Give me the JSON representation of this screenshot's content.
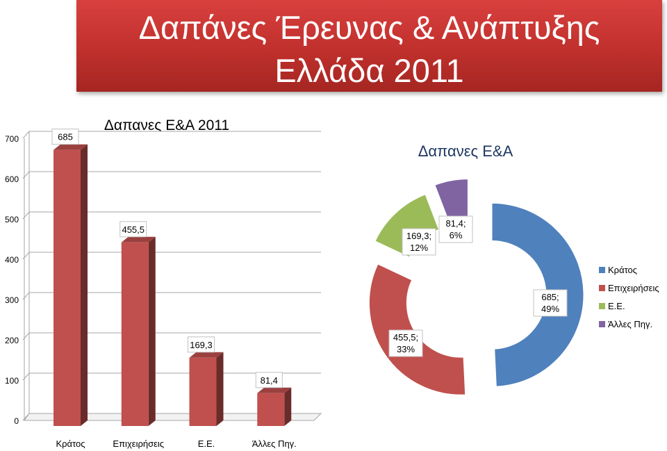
{
  "banner": {
    "line1": "Δαπάνες Έρευνας & Ανάπτυξης",
    "line2": "Ελλάδα 2011"
  },
  "chart_data": [
    {
      "type": "bar",
      "title": "Δαπανες Ε&Α 2011",
      "categories": [
        "Κράτος",
        "Επιχειρήσεις",
        "Ε.Ε.",
        "Άλλες Πηγ."
      ],
      "values": [
        685,
        455.5,
        169.3,
        81.4
      ],
      "data_labels": [
        "685",
        "455,5",
        "169,3",
        "81,4"
      ],
      "ylim": [
        0,
        700
      ],
      "yticks": [
        0,
        100,
        200,
        300,
        400,
        500,
        600,
        700
      ],
      "grid": true,
      "color": "#c0504d"
    },
    {
      "type": "pie",
      "title": "Δαπανες Ε&Α",
      "categories": [
        "Κράτος",
        "Επιχειρήσεις",
        "Ε.Ε.",
        "Άλλες Πηγ."
      ],
      "values": [
        685,
        455.5,
        169.3,
        81.4
      ],
      "percent_labels": [
        "49%",
        "33%",
        "12%",
        "6%"
      ],
      "data_labels": [
        "685;\n49%",
        "455,5;\n33%",
        "169,3;\n12%",
        "81,4;\n6%"
      ],
      "colors": [
        "#4f81bd",
        "#c0504d",
        "#9bbb59",
        "#8064a2"
      ],
      "legend_position": "right"
    }
  ]
}
